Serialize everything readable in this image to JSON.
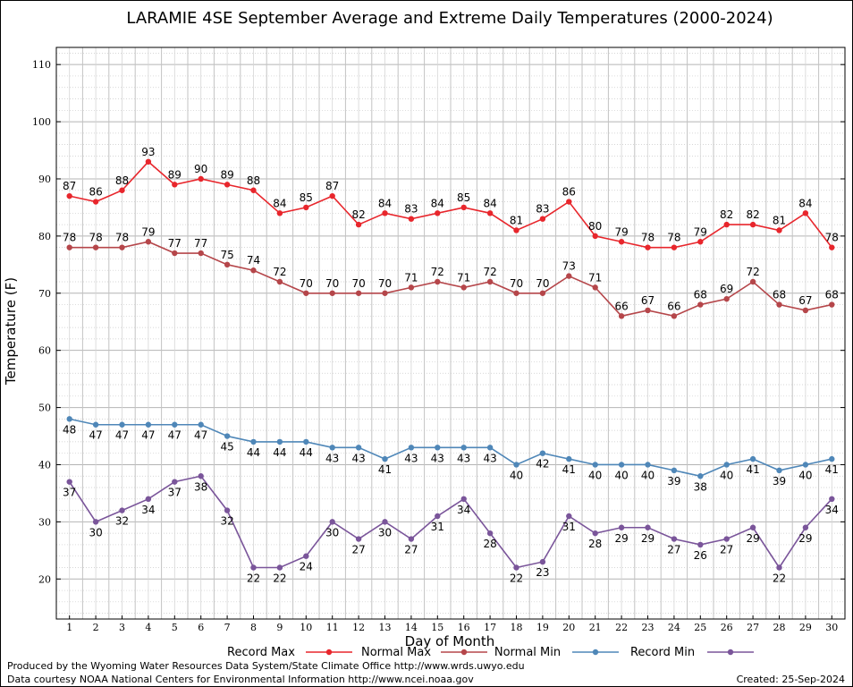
{
  "chart_data": {
    "type": "line",
    "title": "LARAMIE 4SE September Average and Extreme Daily Temperatures (2000-2024)",
    "xlabel": "Day of Month",
    "ylabel": "Temperature (F)",
    "ylim": [
      13,
      113
    ],
    "y_ticks": [
      20,
      30,
      40,
      50,
      60,
      70,
      80,
      90,
      100,
      110
    ],
    "x": [
      1,
      2,
      3,
      4,
      5,
      6,
      7,
      8,
      9,
      10,
      11,
      12,
      13,
      14,
      15,
      16,
      17,
      18,
      19,
      20,
      21,
      22,
      23,
      24,
      25,
      26,
      27,
      28,
      29,
      30
    ],
    "grid": true,
    "legend_position": "bottom",
    "series": [
      {
        "name": "Record Max",
        "color": "#e8262c",
        "label_position": "above",
        "values": [
          87,
          86,
          88,
          93,
          89,
          90,
          89,
          88,
          84,
          85,
          87,
          82,
          84,
          83,
          84,
          85,
          84,
          81,
          83,
          86,
          80,
          79,
          78,
          78,
          79,
          82,
          82,
          81,
          84,
          78
        ]
      },
      {
        "name": "Normal Max",
        "color": "#b5464a",
        "label_position": "above",
        "values": [
          78,
          78,
          78,
          79,
          77,
          77,
          75,
          74,
          72,
          70,
          70,
          70,
          70,
          71,
          72,
          71,
          72,
          70,
          70,
          73,
          71,
          66,
          67,
          66,
          68,
          69,
          72,
          68,
          67,
          68
        ]
      },
      {
        "name": "Normal Min",
        "color": "#4f87b8",
        "label_position": "below",
        "values": [
          48,
          47,
          47,
          47,
          47,
          47,
          45,
          44,
          44,
          44,
          43,
          43,
          41,
          43,
          43,
          43,
          43,
          40,
          42,
          41,
          40,
          40,
          40,
          39,
          38,
          40,
          41,
          39,
          40,
          41
        ]
      },
      {
        "name": "Record Min",
        "color": "#7a559a",
        "label_position": "below",
        "values": [
          37,
          30,
          32,
          34,
          37,
          38,
          32,
          22,
          22,
          24,
          30,
          27,
          30,
          27,
          31,
          34,
          28,
          22,
          23,
          31,
          28,
          29,
          29,
          27,
          26,
          27,
          29,
          22,
          29,
          34
        ]
      }
    ]
  },
  "footer": {
    "produced_by": "Produced by the Wyoming Water Resources Data System/State Climate Office http://www.wrds.uwyo.edu",
    "courtesy": "Data courtesy NOAA National Centers for Environmental Information http://www.ncei.noaa.gov",
    "created": "Created:  25-Sep-2024"
  }
}
